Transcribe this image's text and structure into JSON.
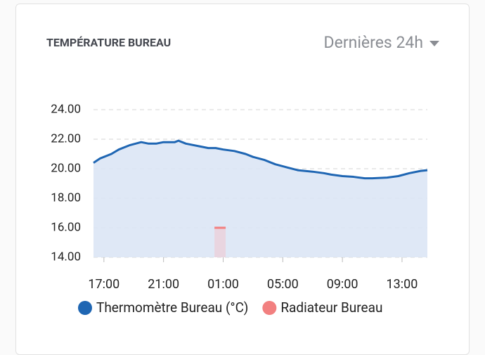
{
  "chart_data": {
    "type": "line",
    "title": "TEMPÉRATURE BUREAU",
    "range_selector": "Dernières 24h",
    "xlim": [
      "16:18",
      "14:42"
    ],
    "xticks": [
      "17:00",
      "21:00",
      "01:00",
      "05:00",
      "09:00",
      "13:00"
    ],
    "ylim": [
      14,
      24
    ],
    "yticks": [
      {
        "value": 14,
        "label": "14.00"
      },
      {
        "value": 16,
        "label": "16.00"
      },
      {
        "value": 18,
        "label": "18.00"
      },
      {
        "value": 20,
        "label": "20.00"
      },
      {
        "value": 22,
        "label": "22.00"
      },
      {
        "value": 24,
        "label": "24.00"
      }
    ],
    "grid": true,
    "series": [
      {
        "name": "Thermomètre Bureau (°C)",
        "color": "#1f66b3",
        "fill": "#dbe5f5",
        "x": [
          "16:18",
          "16:45",
          "17:30",
          "18:00",
          "18:45",
          "19:30",
          "20:00",
          "20:30",
          "21:00",
          "21:45",
          "22:00",
          "22:30",
          "23:30",
          "00:00",
          "00:30",
          "01:00",
          "01:45",
          "02:30",
          "03:00",
          "03:45",
          "04:30",
          "05:15",
          "06:00",
          "07:00",
          "07:45",
          "08:15",
          "09:00",
          "09:45",
          "10:30",
          "11:00",
          "12:00",
          "12:45",
          "13:30",
          "14:15",
          "14:42"
        ],
        "values": [
          20.4,
          20.7,
          21.0,
          21.3,
          21.6,
          21.8,
          21.7,
          21.7,
          21.8,
          21.8,
          21.9,
          21.7,
          21.5,
          21.4,
          21.4,
          21.3,
          21.2,
          21.0,
          20.8,
          20.6,
          20.3,
          20.1,
          19.9,
          19.8,
          19.7,
          19.6,
          19.5,
          19.45,
          19.35,
          19.35,
          19.4,
          19.5,
          19.7,
          19.85,
          19.9
        ]
      },
      {
        "name": "Radiateur Bureau",
        "color": "#f28080",
        "fill": "#ead3de",
        "x": [
          "00:25",
          "01:10"
        ],
        "values": [
          16,
          16
        ]
      }
    ]
  }
}
